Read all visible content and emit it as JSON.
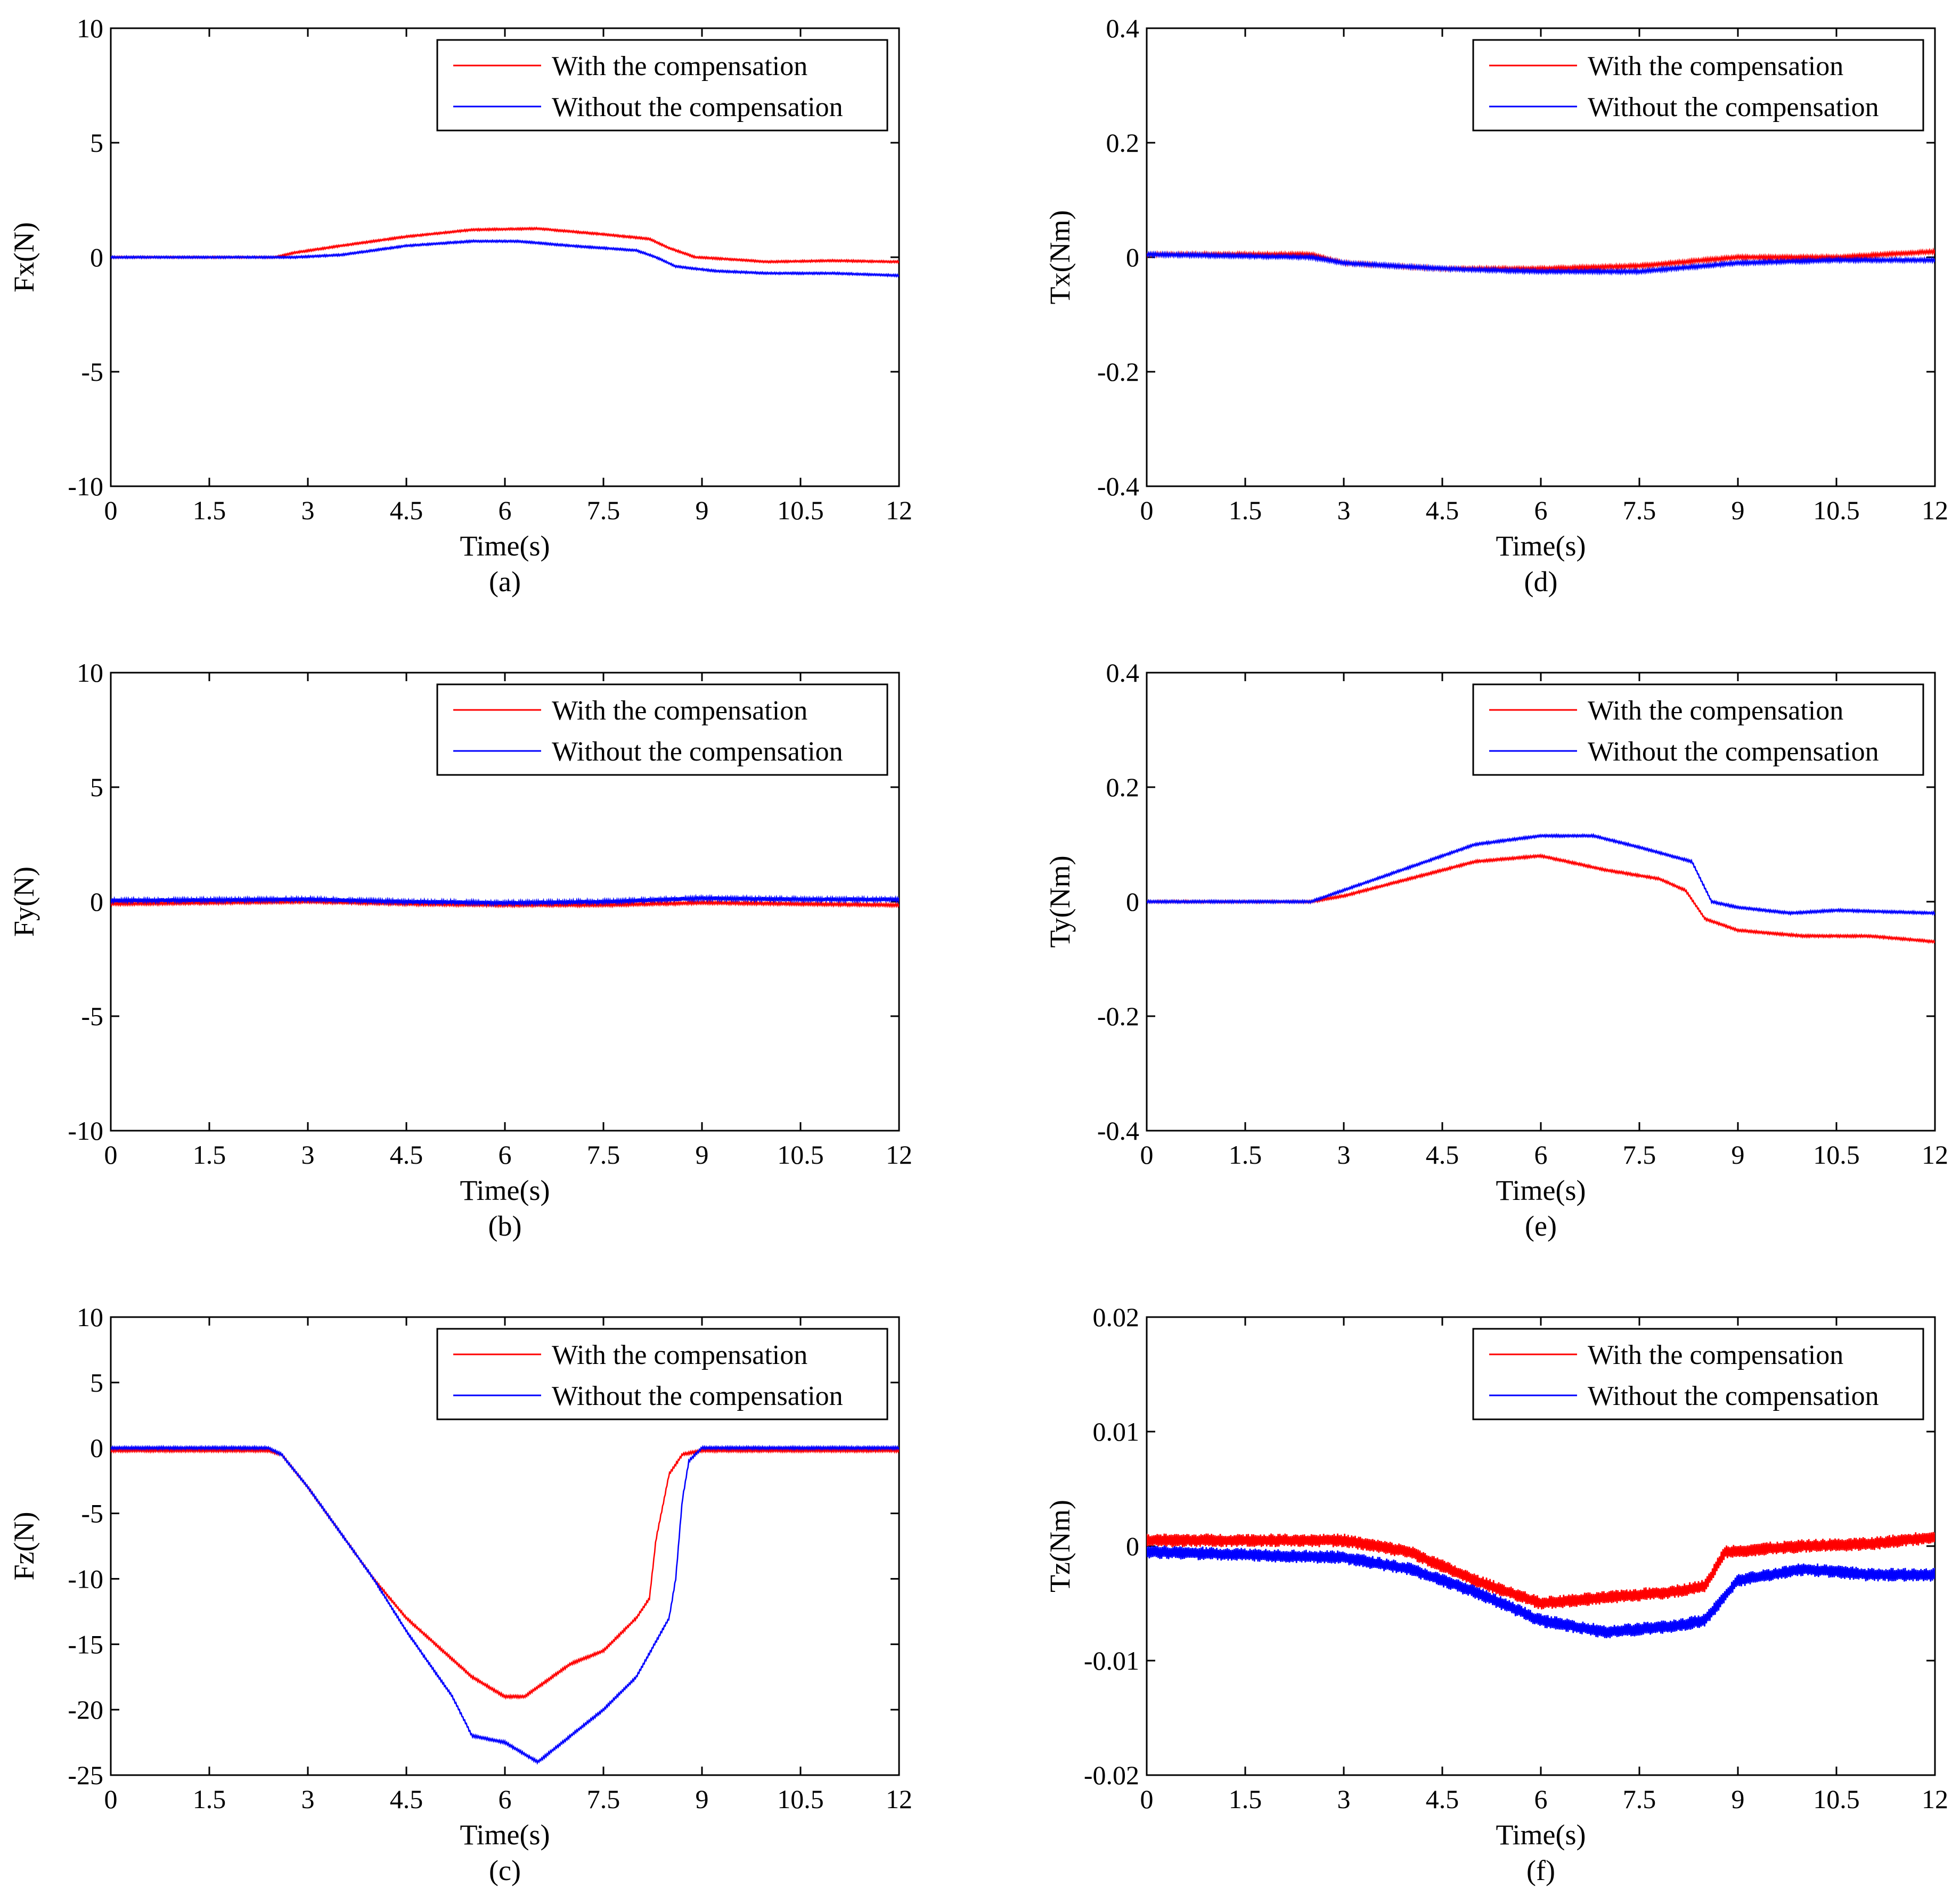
{
  "figure": {
    "x_tick_labels": [
      "0",
      "1.5",
      "3",
      "4.5",
      "6",
      "7.5",
      "9",
      "10.5",
      "12"
    ],
    "colors": {
      "with": "#ff0000",
      "without": "#0000ff",
      "axis": "#000000"
    }
  },
  "chart_data": [
    {
      "id": "a",
      "type": "line",
      "caption": "(a)",
      "xlabel": "Time(s)",
      "ylabel": "Fx(N)",
      "xlim": [
        0,
        12
      ],
      "ylim": [
        -10,
        10
      ],
      "yticks": [
        10,
        5,
        0,
        -5,
        -10
      ],
      "ytick_labels": [
        "10",
        "5",
        "0",
        "-5",
        "-10"
      ],
      "legend": {
        "position": "top-right",
        "entries": [
          "With the compensation",
          "Without the compensation"
        ]
      },
      "noise": [
        0.04,
        0.04
      ],
      "series": [
        {
          "name": "With the compensation",
          "color": "#ff0000",
          "points": [
            [
              0,
              0
            ],
            [
              2.5,
              0
            ],
            [
              2.8,
              0.2
            ],
            [
              3.5,
              0.5
            ],
            [
              4.5,
              0.9
            ],
            [
              5.5,
              1.2
            ],
            [
              6.5,
              1.25
            ],
            [
              7.5,
              1.0
            ],
            [
              8.2,
              0.8
            ],
            [
              8.5,
              0.4
            ],
            [
              8.9,
              0.0
            ],
            [
              9.5,
              -0.1
            ],
            [
              10,
              -0.2
            ],
            [
              11,
              -0.15
            ],
            [
              12,
              -0.2
            ]
          ]
        },
        {
          "name": "Without the compensation",
          "color": "#0000ff",
          "points": [
            [
              0,
              0
            ],
            [
              2.8,
              0
            ],
            [
              3.5,
              0.1
            ],
            [
              4.5,
              0.5
            ],
            [
              5.5,
              0.7
            ],
            [
              6.2,
              0.7
            ],
            [
              7,
              0.5
            ],
            [
              8,
              0.3
            ],
            [
              8.3,
              0.0
            ],
            [
              8.6,
              -0.4
            ],
            [
              9.2,
              -0.6
            ],
            [
              10,
              -0.7
            ],
            [
              11,
              -0.7
            ],
            [
              12,
              -0.8
            ]
          ]
        }
      ]
    },
    {
      "id": "d",
      "type": "line",
      "caption": "(d)",
      "xlabel": "Time(s)",
      "ylabel": "Tx(Nm)",
      "xlim": [
        0,
        12
      ],
      "ylim": [
        -0.4,
        0.4
      ],
      "yticks": [
        0.4,
        0.2,
        0,
        -0.2,
        -0.4
      ],
      "ytick_labels": [
        "0.4",
        "0.2",
        "0",
        "-0.2",
        "-0.4"
      ],
      "legend": {
        "position": "top-right",
        "entries": [
          "With the compensation",
          "Without the compensation"
        ]
      },
      "noise": [
        0.003,
        0.003
      ],
      "series": [
        {
          "name": "With the compensation",
          "color": "#ff0000",
          "points": [
            [
              0,
              0.005
            ],
            [
              2.5,
              0.005
            ],
            [
              3,
              -0.01
            ],
            [
              4.5,
              -0.02
            ],
            [
              6,
              -0.02
            ],
            [
              7.5,
              -0.015
            ],
            [
              8.5,
              -0.005
            ],
            [
              9,
              0.0
            ],
            [
              10.5,
              0.0
            ],
            [
              12,
              0.01
            ]
          ]
        },
        {
          "name": "Without the compensation",
          "color": "#0000ff",
          "points": [
            [
              0,
              0.005
            ],
            [
              2.5,
              0.0
            ],
            [
              3,
              -0.01
            ],
            [
              4.5,
              -0.02
            ],
            [
              6,
              -0.025
            ],
            [
              7.5,
              -0.025
            ],
            [
              9,
              -0.01
            ],
            [
              10.5,
              -0.005
            ],
            [
              12,
              -0.005
            ]
          ]
        }
      ]
    },
    {
      "id": "b",
      "type": "line",
      "caption": "(b)",
      "xlabel": "Time(s)",
      "ylabel": "Fy(N)",
      "xlim": [
        0,
        12
      ],
      "ylim": [
        -10,
        10
      ],
      "yticks": [
        10,
        5,
        0,
        -5,
        -10
      ],
      "ytick_labels": [
        "10",
        "5",
        "0",
        "-5",
        "-10"
      ],
      "legend": {
        "position": "top-right",
        "entries": [
          "With the compensation",
          "Without the compensation"
        ]
      },
      "noise": [
        0.06,
        0.09
      ],
      "series": [
        {
          "name": "With the compensation",
          "color": "#ff0000",
          "points": [
            [
              0,
              -0.1
            ],
            [
              3,
              0.0
            ],
            [
              4.5,
              -0.1
            ],
            [
              6,
              -0.15
            ],
            [
              7.5,
              -0.15
            ],
            [
              9,
              -0.05
            ],
            [
              10.5,
              -0.1
            ],
            [
              12,
              -0.15
            ]
          ]
        },
        {
          "name": "Without the compensation",
          "color": "#0000ff",
          "points": [
            [
              0,
              0.05
            ],
            [
              3,
              0.1
            ],
            [
              4.5,
              0.0
            ],
            [
              6,
              -0.05
            ],
            [
              7.5,
              0.0
            ],
            [
              9,
              0.15
            ],
            [
              10.5,
              0.1
            ],
            [
              12,
              0.1
            ]
          ]
        }
      ]
    },
    {
      "id": "e",
      "type": "line",
      "caption": "(e)",
      "xlabel": "Time(s)",
      "ylabel": "Ty(Nm)",
      "xlim": [
        0,
        12
      ],
      "ylim": [
        -0.4,
        0.4
      ],
      "yticks": [
        0.4,
        0.2,
        0,
        -0.2,
        -0.4
      ],
      "ytick_labels": [
        "0.4",
        "0.2",
        "0",
        "-0.2",
        "-0.4"
      ],
      "legend": {
        "position": "top-right",
        "entries": [
          "With the compensation",
          "Without the compensation"
        ]
      },
      "noise": [
        0.002,
        0.002
      ],
      "series": [
        {
          "name": "With the compensation",
          "color": "#ff0000",
          "points": [
            [
              0,
              0
            ],
            [
              2.5,
              0
            ],
            [
              3,
              0.01
            ],
            [
              4,
              0.04
            ],
            [
              5,
              0.07
            ],
            [
              6,
              0.08
            ],
            [
              7,
              0.055
            ],
            [
              7.8,
              0.04
            ],
            [
              8.2,
              0.02
            ],
            [
              8.5,
              -0.03
            ],
            [
              9,
              -0.05
            ],
            [
              10,
              -0.06
            ],
            [
              11,
              -0.06
            ],
            [
              12,
              -0.07
            ]
          ]
        },
        {
          "name": "Without the compensation",
          "color": "#0000ff",
          "points": [
            [
              0,
              0
            ],
            [
              2.5,
              0
            ],
            [
              3,
              0.02
            ],
            [
              4,
              0.06
            ],
            [
              5,
              0.1
            ],
            [
              6,
              0.115
            ],
            [
              6.8,
              0.115
            ],
            [
              7.5,
              0.095
            ],
            [
              8.3,
              0.07
            ],
            [
              8.6,
              0.0
            ],
            [
              9,
              -0.01
            ],
            [
              9.8,
              -0.02
            ],
            [
              10.5,
              -0.015
            ],
            [
              12,
              -0.02
            ]
          ]
        }
      ]
    },
    {
      "id": "c",
      "type": "line",
      "caption": "(c)",
      "xlabel": "Time(s)",
      "ylabel": "Fz(N)",
      "xlim": [
        0,
        12
      ],
      "ylim": [
        -25,
        10
      ],
      "yticks": [
        10,
        5,
        0,
        -5,
        -10,
        -15,
        -20,
        -25
      ],
      "ytick_labels": [
        "10",
        "5",
        "0",
        "-5",
        "-10",
        "-15",
        "-20",
        "-25"
      ],
      "legend": {
        "position": "top-right",
        "entries": [
          "With the compensation",
          "Without the compensation"
        ]
      },
      "noise": [
        0.1,
        0.1
      ],
      "series": [
        {
          "name": "With the compensation",
          "color": "#ff0000",
          "points": [
            [
              0,
              -0.2
            ],
            [
              2.4,
              -0.2
            ],
            [
              2.6,
              -0.5
            ],
            [
              3,
              -3
            ],
            [
              4,
              -10
            ],
            [
              4.5,
              -13
            ],
            [
              5.5,
              -17.5
            ],
            [
              6,
              -19
            ],
            [
              6.3,
              -19
            ],
            [
              7,
              -16.5
            ],
            [
              7.5,
              -15.5
            ],
            [
              8,
              -13
            ],
            [
              8.2,
              -11.5
            ],
            [
              8.3,
              -7
            ],
            [
              8.5,
              -2
            ],
            [
              8.7,
              -0.5
            ],
            [
              9,
              -0.2
            ],
            [
              12,
              -0.2
            ]
          ]
        },
        {
          "name": "Without the compensation",
          "color": "#0000ff",
          "points": [
            [
              0,
              0
            ],
            [
              2.4,
              0
            ],
            [
              2.6,
              -0.5
            ],
            [
              3,
              -3
            ],
            [
              4,
              -10
            ],
            [
              4.5,
              -14
            ],
            [
              5.2,
              -19
            ],
            [
              5.5,
              -22
            ],
            [
              6,
              -22.5
            ],
            [
              6.5,
              -24
            ],
            [
              7,
              -22
            ],
            [
              7.5,
              -20
            ],
            [
              8,
              -17.5
            ],
            [
              8.5,
              -13
            ],
            [
              8.6,
              -10
            ],
            [
              8.7,
              -4
            ],
            [
              8.8,
              -1
            ],
            [
              9,
              0
            ],
            [
              12,
              0
            ]
          ]
        }
      ]
    },
    {
      "id": "f",
      "type": "line",
      "caption": "(f)",
      "xlabel": "Time(s)",
      "ylabel": "Tz(Nm)",
      "xlim": [
        0,
        12
      ],
      "ylim": [
        -0.02,
        0.02
      ],
      "yticks": [
        0.02,
        0.01,
        0,
        -0.01,
        -0.02
      ],
      "ytick_labels": [
        "0.02",
        "0.01",
        "0",
        "-0.01",
        "-0.02"
      ],
      "legend": {
        "position": "top-right",
        "entries": [
          "With the compensation",
          "Without the compensation"
        ]
      },
      "noise": [
        0.0006,
        0.0006
      ],
      "series": [
        {
          "name": "With the compensation",
          "color": "#ff0000",
          "points": [
            [
              0,
              0.0005
            ],
            [
              3,
              0.0005
            ],
            [
              4,
              -0.0005
            ],
            [
              5,
              -0.003
            ],
            [
              6,
              -0.005
            ],
            [
              7,
              -0.0045
            ],
            [
              8,
              -0.004
            ],
            [
              8.5,
              -0.0035
            ],
            [
              8.8,
              -0.0005
            ],
            [
              10,
              0
            ],
            [
              11,
              0.0002
            ],
            [
              12,
              0.0008
            ]
          ]
        },
        {
          "name": "Without the compensation",
          "color": "#0000ff",
          "points": [
            [
              0,
              -0.0005
            ],
            [
              3,
              -0.001
            ],
            [
              4,
              -0.002
            ],
            [
              5,
              -0.004
            ],
            [
              6,
              -0.0065
            ],
            [
              7,
              -0.0075
            ],
            [
              8,
              -0.007
            ],
            [
              8.5,
              -0.0065
            ],
            [
              9,
              -0.003
            ],
            [
              10,
              -0.002
            ],
            [
              11,
              -0.0025
            ],
            [
              12,
              -0.0025
            ]
          ]
        }
      ]
    }
  ]
}
